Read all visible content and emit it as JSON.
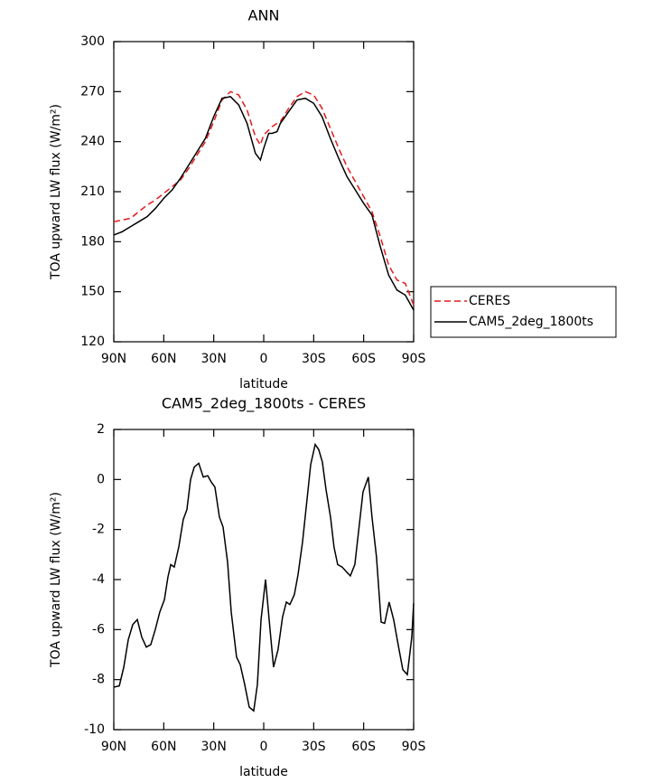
{
  "chart_data": [
    {
      "type": "line",
      "title": "ANN",
      "xlabel": "latitude",
      "ylabel": "TOA upward LW flux (W/m²)",
      "x": [
        90,
        85,
        80,
        75,
        70,
        65,
        60,
        55,
        50,
        45,
        40,
        35,
        30,
        25,
        20,
        15,
        10,
        5,
        2,
        0,
        -3,
        -5,
        -8,
        -10,
        -15,
        -20,
        -25,
        -30,
        -35,
        -40,
        -45,
        -50,
        -55,
        -60,
        -65,
        -70,
        -75,
        -80,
        -85,
        -90
      ],
      "series": [
        {
          "name": "CERES",
          "color": "#e41a1c",
          "dash": true,
          "values": [
            192,
            193,
            194,
            198,
            202,
            205,
            209,
            213,
            217,
            224,
            232,
            240,
            252,
            265,
            270,
            268,
            259,
            243,
            238,
            244,
            247,
            249,
            251,
            252,
            260,
            267,
            270,
            268,
            260,
            248,
            236,
            225,
            216,
            207,
            198,
            183,
            166,
            157,
            155,
            142
          ]
        },
        {
          "name": "CAM5_2deg_1800ts",
          "color": "#000000",
          "dash": false,
          "values": [
            184,
            186,
            189,
            192,
            195,
            200,
            206,
            211,
            218,
            226,
            234,
            242,
            255,
            266,
            267,
            262,
            251,
            233,
            229,
            236,
            245,
            245,
            246,
            251,
            258,
            265,
            266,
            263,
            255,
            242,
            230,
            219,
            211,
            203,
            196,
            177,
            160,
            151,
            148,
            139
          ]
        }
      ],
      "xlim": [
        90,
        -90
      ],
      "xticks": [
        {
          "value": 90,
          "label": "90N"
        },
        {
          "value": 60,
          "label": "60N"
        },
        {
          "value": 30,
          "label": "30N"
        },
        0,
        {
          "value": -30,
          "label": "30S"
        },
        {
          "value": -60,
          "label": "60S"
        },
        {
          "value": -90,
          "label": "90S"
        }
      ],
      "ylim": [
        120,
        300
      ],
      "yticks": [
        120,
        150,
        180,
        210,
        240,
        270,
        300
      ]
    },
    {
      "type": "line",
      "title": "CAM5_2deg_1800ts - CERES",
      "xlabel": "latitude",
      "ylabel": "TOA upward LW flux (W/m²)",
      "x": [
        90,
        86.7,
        84,
        81.3,
        78.6,
        75.9,
        73.2,
        70.5,
        67.8,
        65.1,
        62.4,
        59.6,
        57.5,
        55.8,
        53.7,
        51,
        48.3,
        46.1,
        43.9,
        41.7,
        39,
        36.3,
        33.6,
        31.5,
        29.3,
        26.6,
        24.4,
        21.7,
        19.5,
        16.3,
        14.1,
        11.4,
        8.7,
        6,
        3.8,
        1.6,
        -1.1,
        -3.8,
        -5.9,
        -8.6,
        -11.3,
        -13.6,
        -15.7,
        -18.4,
        -20.6,
        -23.3,
        -26,
        -28.2,
        -30.9,
        -33,
        -35.2,
        -37.4,
        -40.1,
        -42.2,
        -44.4,
        -47.1,
        -49.8,
        -52,
        -54.7,
        -56.9,
        -59.6,
        -62.8,
        -65,
        -67.7,
        -70.5,
        -72.6,
        -75.3,
        -78,
        -80.7,
        -83.5,
        -86.2,
        -88.9,
        -90
      ],
      "values": [
        -8.3,
        -8.25,
        -7.5,
        -6.4,
        -5.8,
        -5.6,
        -6.3,
        -6.7,
        -6.6,
        -6,
        -5.3,
        -4.8,
        -3.9,
        -3.4,
        -3.5,
        -2.7,
        -1.6,
        -1.2,
        0,
        0.5,
        0.65,
        0.1,
        0.15,
        -0.1,
        -0.3,
        -1.5,
        -1.9,
        -3.3,
        -5.3,
        -7.1,
        -7.4,
        -8.2,
        -9.1,
        -9.25,
        -8.2,
        -5.6,
        -4,
        -6,
        -7.5,
        -6.8,
        -5.5,
        -4.9,
        -5,
        -4.6,
        -3.8,
        -2.5,
        -0.8,
        0.6,
        1.4,
        1.2,
        0.7,
        -0.4,
        -1.5,
        -2.7,
        -3.4,
        -3.5,
        -3.7,
        -3.85,
        -3.4,
        -2.1,
        -0.5,
        0.1,
        -1.5,
        -3.1,
        -5.7,
        -5.75,
        -4.9,
        -5.6,
        -6.6,
        -7.6,
        -7.8,
        -6.3,
        -4.95
      ],
      "color": "#000000",
      "xlim": [
        90,
        -90
      ],
      "xticks": [
        {
          "value": 90,
          "label": "90N"
        },
        {
          "value": 60,
          "label": "60N"
        },
        {
          "value": 30,
          "label": "30N"
        },
        0,
        {
          "value": -30,
          "label": "30S"
        },
        {
          "value": -60,
          "label": "60S"
        },
        {
          "value": -90,
          "label": "90S"
        }
      ],
      "ylim": [
        -10,
        2
      ],
      "yticks": [
        -10,
        -8,
        -6,
        -4,
        -2,
        0,
        2
      ]
    }
  ]
}
